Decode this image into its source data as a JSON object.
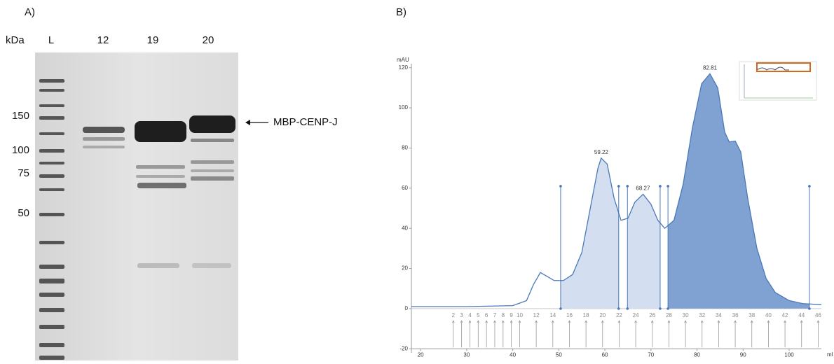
{
  "panel_a": {
    "label": "A)",
    "unit": "kDa",
    "lanes": [
      "L",
      "12",
      "19",
      "20"
    ],
    "markers": [
      "150",
      "100",
      "75",
      "50"
    ],
    "annotation": "MBP-CENP-J"
  },
  "chart_data": {
    "type": "area",
    "panel_label": "B)",
    "y_label": "mAU",
    "x_label": "ml",
    "x": [
      18,
      30,
      40,
      43,
      44.5,
      46,
      47.5,
      49,
      51,
      53,
      55,
      57,
      58.5,
      59.2,
      60.5,
      62,
      63.5,
      65,
      66.5,
      68.3,
      70,
      71.5,
      73,
      75,
      77,
      79,
      81,
      82.8,
      84.5,
      86,
      87,
      88.3,
      89.5,
      91,
      93,
      95,
      97,
      100,
      103,
      107
    ],
    "y": [
      1,
      1,
      1.5,
      4,
      12,
      18,
      16,
      14,
      14,
      17,
      28,
      52,
      70,
      75,
      72,
      55,
      44,
      45,
      53,
      57,
      52,
      44,
      40,
      44,
      62,
      90,
      112,
      117,
      110,
      88,
      83,
      83.5,
      78,
      55,
      30,
      15,
      8,
      4,
      2.5,
      2
    ],
    "color": "#4a78b8",
    "xlim": [
      18,
      107
    ],
    "ylim": [
      -22,
      122
    ],
    "xticks": [
      20,
      30,
      40,
      50,
      60,
      70,
      80,
      90,
      100
    ],
    "yticks": [
      -20,
      0,
      20,
      40,
      60,
      80,
      100,
      120
    ],
    "peaks": [
      59.22,
      68.27,
      82.81
    ],
    "pools": [
      {
        "from": 50.4,
        "to": 63.0,
        "color": "#d3dff0"
      },
      {
        "from": 64.9,
        "to": 72.0,
        "color": "#d3dff0"
      },
      {
        "from": 73.7,
        "to": 104.4,
        "color": "#7fa2d3"
      }
    ],
    "marker_height": 61,
    "fractions": {
      "numbers": [
        2,
        3,
        4,
        5,
        6,
        7,
        8,
        9,
        10,
        12,
        14,
        16,
        18,
        20,
        22,
        24,
        26,
        28,
        30,
        32,
        34,
        36,
        38,
        40,
        42,
        44,
        46
      ],
      "x": [
        27.1,
        28.9,
        30.7,
        32.5,
        34.3,
        36.1,
        37.9,
        39.7,
        41.5,
        45.1,
        48.7,
        52.3,
        55.9,
        59.5,
        63.1,
        66.7,
        70.3,
        73.9,
        77.5,
        81.1,
        84.7,
        88.3,
        91.9,
        95.5,
        99.1,
        102.7,
        106.3
      ]
    }
  }
}
